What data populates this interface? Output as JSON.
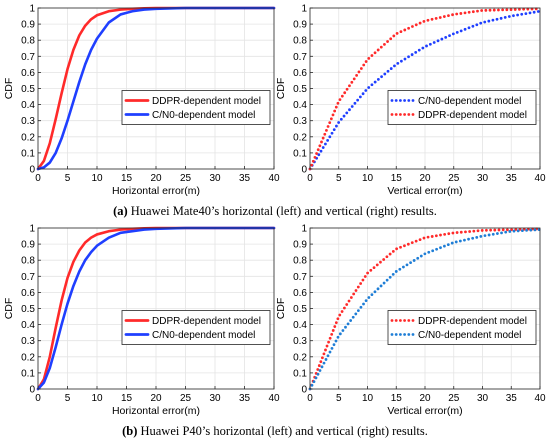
{
  "captions": {
    "a_tag": "(a)",
    "a_text": " Huawei Mate40’s horizontal (left) and vertical (right) results.",
    "b_tag": "(b)",
    "b_text": " Huawei P40’s horizontal (left) and vertical (right) results."
  },
  "colors": {
    "red": "#ff2a2a",
    "blue": "#1f3fff",
    "lightblue": "#1f7ed6"
  },
  "chart_data": [
    {
      "type": "line",
      "panel": "a-left",
      "xlabel": "Horizontal error(m)",
      "ylabel": "CDF",
      "xlim": [
        0,
        40
      ],
      "ylim": [
        0,
        1
      ],
      "xticks": [
        "0",
        "5",
        "10",
        "15",
        "20",
        "25",
        "30",
        "35",
        "40"
      ],
      "yticks": [
        "0",
        "0.1",
        "0.2",
        "0.3",
        "0.4",
        "0.5",
        "0.6",
        "0.7",
        "0.8",
        "0.9",
        "1"
      ],
      "grid": true,
      "legend_position": "right-center",
      "series": [
        {
          "name": "DDPR-dependent model",
          "color": "#ff2a2a",
          "style": "solid",
          "x": [
            0,
            1,
            2,
            3,
            4,
            5,
            6,
            7,
            8,
            9,
            10,
            12,
            14,
            16,
            18,
            20,
            25,
            30,
            40
          ],
          "y": [
            0,
            0.05,
            0.16,
            0.31,
            0.47,
            0.62,
            0.74,
            0.83,
            0.89,
            0.93,
            0.955,
            0.98,
            0.99,
            0.995,
            0.998,
            1,
            1,
            1,
            1
          ]
        },
        {
          "name": "C/N0-dependent model",
          "color": "#1f3fff",
          "style": "solid",
          "x": [
            0,
            1,
            2,
            3,
            4,
            5,
            6,
            7,
            8,
            9,
            10,
            12,
            14,
            16,
            18,
            20,
            25,
            30,
            40
          ],
          "y": [
            0,
            0.01,
            0.04,
            0.1,
            0.19,
            0.3,
            0.42,
            0.54,
            0.65,
            0.74,
            0.81,
            0.91,
            0.96,
            0.98,
            0.99,
            0.995,
            1,
            1,
            1
          ]
        }
      ]
    },
    {
      "type": "line",
      "panel": "a-right",
      "xlabel": "Vertical error(m)",
      "ylabel": "CDF",
      "xlim": [
        0,
        40
      ],
      "ylim": [
        0,
        1
      ],
      "xticks": [
        "0",
        "5",
        "10",
        "15",
        "20",
        "25",
        "30",
        "35",
        "40"
      ],
      "yticks": [
        "0",
        "0.1",
        "0.2",
        "0.3",
        "0.4",
        "0.5",
        "0.6",
        "0.7",
        "0.8",
        "0.9",
        "1"
      ],
      "grid": true,
      "legend_position": "right-center",
      "series": [
        {
          "name": "C/N0-dependent model",
          "color": "#1f3fff",
          "style": "dotted",
          "x": [
            0,
            5,
            10,
            15,
            20,
            25,
            30,
            35,
            40
          ],
          "y": [
            0,
            0.29,
            0.5,
            0.65,
            0.76,
            0.84,
            0.91,
            0.95,
            0.98
          ]
        },
        {
          "name": "DDPR-dependent model",
          "color": "#ff2a2a",
          "style": "dotted",
          "x": [
            0,
            5,
            10,
            15,
            20,
            25,
            30,
            35,
            40
          ],
          "y": [
            0,
            0.42,
            0.68,
            0.84,
            0.92,
            0.96,
            0.985,
            0.99,
            0.995
          ]
        }
      ]
    },
    {
      "type": "line",
      "panel": "b-left",
      "xlabel": "Horizontal error(m)",
      "ylabel": "CDF",
      "xlim": [
        0,
        40
      ],
      "ylim": [
        0,
        1
      ],
      "xticks": [
        "0",
        "5",
        "10",
        "15",
        "20",
        "25",
        "30",
        "35",
        "40"
      ],
      "yticks": [
        "0",
        "0.1",
        "0.2",
        "0.3",
        "0.4",
        "0.5",
        "0.6",
        "0.7",
        "0.8",
        "0.9",
        "1"
      ],
      "grid": true,
      "legend_position": "right-center",
      "series": [
        {
          "name": "DDPR-dependent model",
          "color": "#ff2a2a",
          "style": "solid",
          "x": [
            0,
            1,
            2,
            3,
            4,
            5,
            6,
            7,
            8,
            9,
            10,
            12,
            14,
            16,
            18,
            20,
            25,
            30,
            40
          ],
          "y": [
            0,
            0.06,
            0.2,
            0.38,
            0.55,
            0.69,
            0.79,
            0.86,
            0.91,
            0.94,
            0.96,
            0.98,
            0.99,
            0.995,
            0.998,
            1,
            1,
            1,
            1
          ]
        },
        {
          "name": "C/N0-dependent model",
          "color": "#1f3fff",
          "style": "solid",
          "x": [
            0,
            1,
            2,
            3,
            4,
            5,
            6,
            7,
            8,
            9,
            10,
            12,
            14,
            16,
            18,
            20,
            25,
            30,
            40
          ],
          "y": [
            0,
            0.04,
            0.13,
            0.26,
            0.4,
            0.53,
            0.64,
            0.73,
            0.8,
            0.85,
            0.89,
            0.94,
            0.97,
            0.98,
            0.99,
            0.995,
            1,
            1,
            1
          ]
        }
      ]
    },
    {
      "type": "line",
      "panel": "b-right",
      "xlabel": "Vertical error(m)",
      "ylabel": "CDF",
      "xlim": [
        0,
        40
      ],
      "ylim": [
        0,
        1
      ],
      "xticks": [
        "0",
        "5",
        "10",
        "15",
        "20",
        "25",
        "30",
        "35",
        "40"
      ],
      "yticks": [
        "0",
        "0.1",
        "0.2",
        "0.3",
        "0.4",
        "0.5",
        "0.6",
        "0.7",
        "0.8",
        "0.9",
        "1"
      ],
      "grid": true,
      "legend_position": "right-center",
      "series": [
        {
          "name": "DDPR-dependent model",
          "color": "#ff2a2a",
          "style": "dotted",
          "x": [
            0,
            5,
            10,
            15,
            20,
            25,
            30,
            35,
            40
          ],
          "y": [
            0,
            0.45,
            0.72,
            0.87,
            0.94,
            0.97,
            0.985,
            0.99,
            0.995
          ]
        },
        {
          "name": "C/N0-dependent model",
          "color": "#1f7ed6",
          "style": "dotted",
          "x": [
            0,
            5,
            10,
            15,
            20,
            25,
            30,
            35,
            40
          ],
          "y": [
            0,
            0.33,
            0.56,
            0.73,
            0.84,
            0.91,
            0.95,
            0.98,
            0.99
          ]
        }
      ]
    }
  ]
}
